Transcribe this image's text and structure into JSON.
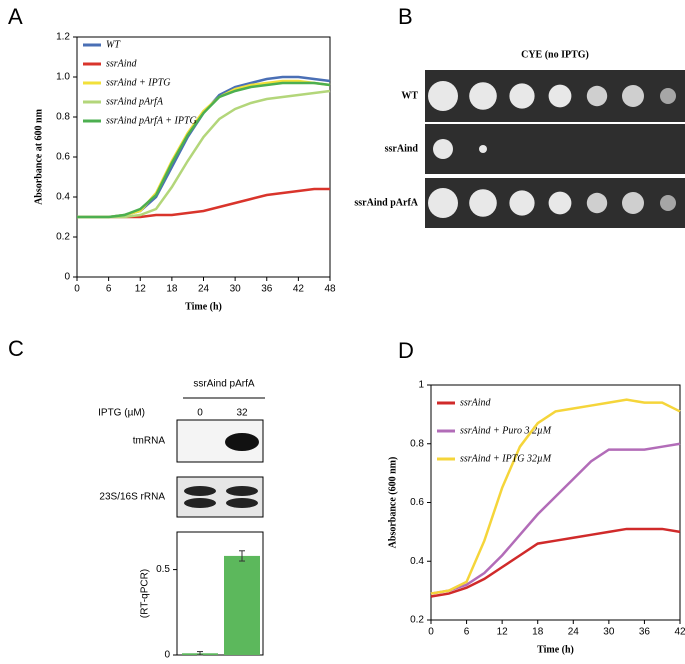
{
  "chart_data": [
    {
      "type": "line",
      "panel": "A",
      "x_label": "Time (h)",
      "y_label": "Absorbance at 600 nm",
      "x": [
        0,
        3,
        6,
        9,
        12,
        15,
        18,
        21,
        24,
        27,
        30,
        33,
        36,
        39,
        42,
        45,
        48
      ],
      "xlim": [
        0,
        48
      ],
      "xticks": [
        0,
        6,
        12,
        18,
        24,
        30,
        36,
        42,
        48
      ],
      "ylim": [
        0,
        1.2
      ],
      "yticks": [
        0,
        0.2,
        0.4,
        0.6,
        0.8,
        {
          "value": 1,
          "label": "1.0"
        },
        1.2
      ],
      "series": [
        {
          "name": "WT",
          "color": "#4a6fb5",
          "values": [
            0.3,
            0.3,
            0.3,
            0.31,
            0.33,
            0.4,
            0.55,
            0.7,
            0.82,
            0.91,
            0.95,
            0.97,
            0.99,
            1.0,
            1.0,
            0.99,
            0.98
          ]
        },
        {
          "name": "ssrAind",
          "color": "#d9342b",
          "values": [
            0.3,
            0.3,
            0.3,
            0.3,
            0.3,
            0.31,
            0.31,
            0.32,
            0.33,
            0.35,
            0.37,
            0.39,
            0.41,
            0.42,
            0.43,
            0.44,
            0.44
          ]
        },
        {
          "name": "ssrAind + IPTG",
          "color": "#f2e03a",
          "values": [
            0.3,
            0.3,
            0.3,
            0.31,
            0.33,
            0.42,
            0.58,
            0.72,
            0.83,
            0.9,
            0.94,
            0.96,
            0.97,
            0.98,
            0.98,
            0.97,
            0.96
          ]
        },
        {
          "name": "ssrAind pArfA",
          "color": "#b3d67a",
          "values": [
            0.3,
            0.3,
            0.3,
            0.3,
            0.31,
            0.34,
            0.45,
            0.58,
            0.7,
            0.79,
            0.84,
            0.87,
            0.89,
            0.9,
            0.91,
            0.92,
            0.93
          ]
        },
        {
          "name": "ssrAind pArfA + IPTG",
          "color": "#4caf50",
          "values": [
            0.3,
            0.3,
            0.3,
            0.31,
            0.34,
            0.41,
            0.57,
            0.71,
            0.82,
            0.9,
            0.93,
            0.95,
            0.96,
            0.97,
            0.97,
            0.97,
            0.96
          ]
        }
      ]
    },
    {
      "type": "spot-assay",
      "panel": "B",
      "title": "CYE (no IPTG)",
      "rows": [
        "WT",
        "ssrAind",
        "ssrAind pArfA"
      ]
    },
    {
      "type": "bar",
      "panel": "C",
      "strain": "ssrAind pArfA",
      "condition_label": "IPTG (µM)",
      "categories": [
        "0",
        "32"
      ],
      "blots": [
        "tmRNA",
        "23S/16S rRNA"
      ],
      "y_label": "(RT-qPCR)",
      "values": [
        0.01,
        0.58
      ],
      "errors": [
        0.01,
        0.03
      ],
      "color": "#5cb85c",
      "ylim": [
        0,
        0.72
      ],
      "yticks": [
        0,
        0.5
      ]
    },
    {
      "type": "line",
      "panel": "D",
      "x_label": "Time (h)",
      "y_label": "Absorbance  (600 nm)",
      "x": [
        0,
        3,
        6,
        9,
        12,
        15,
        18,
        21,
        24,
        27,
        30,
        33,
        36,
        39,
        42
      ],
      "xlim": [
        0,
        42
      ],
      "xticks": [
        0,
        6,
        12,
        18,
        24,
        30,
        36,
        42
      ],
      "ylim": [
        0.2,
        1
      ],
      "yticks": [
        0.2,
        0.4,
        0.6,
        0.8,
        1
      ],
      "series": [
        {
          "name": "ssrAind",
          "color": "#d02a2a",
          "values": [
            0.28,
            0.29,
            0.31,
            0.34,
            0.38,
            0.42,
            0.46,
            0.47,
            0.48,
            0.49,
            0.5,
            0.51,
            0.51,
            0.51,
            0.5
          ]
        },
        {
          "name": "ssrAind + Puro 3.2µM",
          "color": "#b26cb8",
          "values": [
            0.29,
            0.3,
            0.32,
            0.36,
            0.42,
            0.49,
            0.56,
            0.62,
            0.68,
            0.74,
            0.78,
            0.78,
            0.78,
            0.79,
            0.8
          ]
        },
        {
          "name": "ssrAind + IPTG 32µM",
          "color": "#f5d53a",
          "values": [
            0.29,
            0.3,
            0.33,
            0.47,
            0.65,
            0.79,
            0.87,
            0.91,
            0.92,
            0.93,
            0.94,
            0.95,
            0.94,
            0.94,
            0.91
          ]
        }
      ]
    }
  ]
}
